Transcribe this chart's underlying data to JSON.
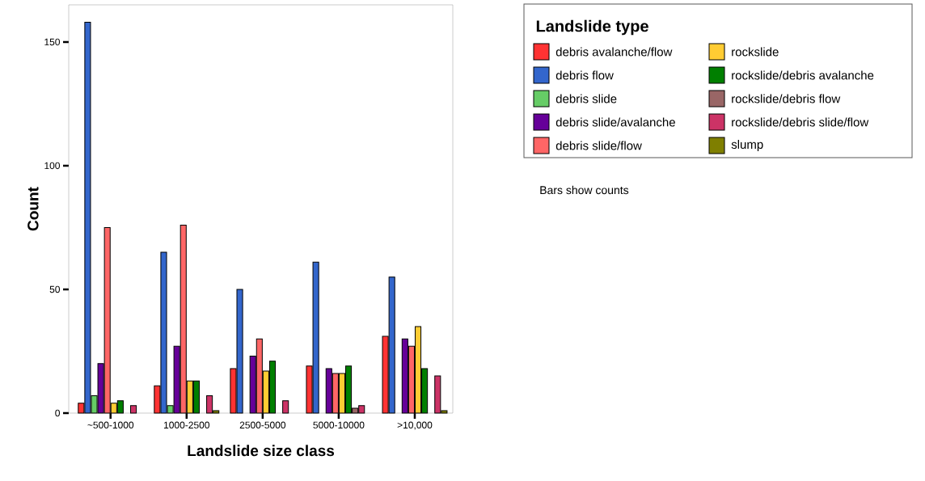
{
  "chart_data": {
    "type": "bar",
    "xlabel": "Landslide size class",
    "ylabel": "Count",
    "legend_title": "Landslide type",
    "categories": [
      "~500-1000",
      "1000-2500",
      "2500-5000",
      "5000-10000",
      ">10,000"
    ],
    "series": [
      {
        "name": "debris avalanche/flow",
        "color": "#ff3333",
        "values": [
          4,
          11,
          18,
          19,
          31
        ]
      },
      {
        "name": "debris flow",
        "color": "#3366cc",
        "values": [
          158,
          65,
          50,
          61,
          55
        ]
      },
      {
        "name": "debris slide",
        "color": "#66cc66",
        "values": [
          7,
          3,
          null,
          null,
          null
        ]
      },
      {
        "name": "debris slide/avalanche",
        "color": "#660099",
        "values": [
          20,
          27,
          23,
          18,
          30
        ]
      },
      {
        "name": "debris slide/flow",
        "color": "#ff6666",
        "values": [
          75,
          76,
          30,
          16,
          27
        ]
      },
      {
        "name": "rockslide",
        "color": "#ffcc33",
        "values": [
          4,
          13,
          17,
          16,
          35
        ]
      },
      {
        "name": "rockslide/debris avalanche",
        "color": "#007f00",
        "values": [
          5,
          13,
          21,
          19,
          18
        ]
      },
      {
        "name": "rockslide/debris flow",
        "color": "#996666",
        "values": [
          null,
          null,
          null,
          2,
          null
        ]
      },
      {
        "name": "rockslide/debris slide/flow",
        "color": "#cc3366",
        "values": [
          3,
          7,
          5,
          3,
          15
        ]
      },
      {
        "name": "slump",
        "color": "#7f7f00",
        "values": [
          null,
          1,
          null,
          null,
          1
        ]
      }
    ],
    "ylim": [
      0,
      165
    ],
    "yticks": [
      0,
      50,
      100,
      150
    ],
    "legend": "right",
    "grid": false,
    "annotations": [
      "Bars show counts"
    ]
  }
}
